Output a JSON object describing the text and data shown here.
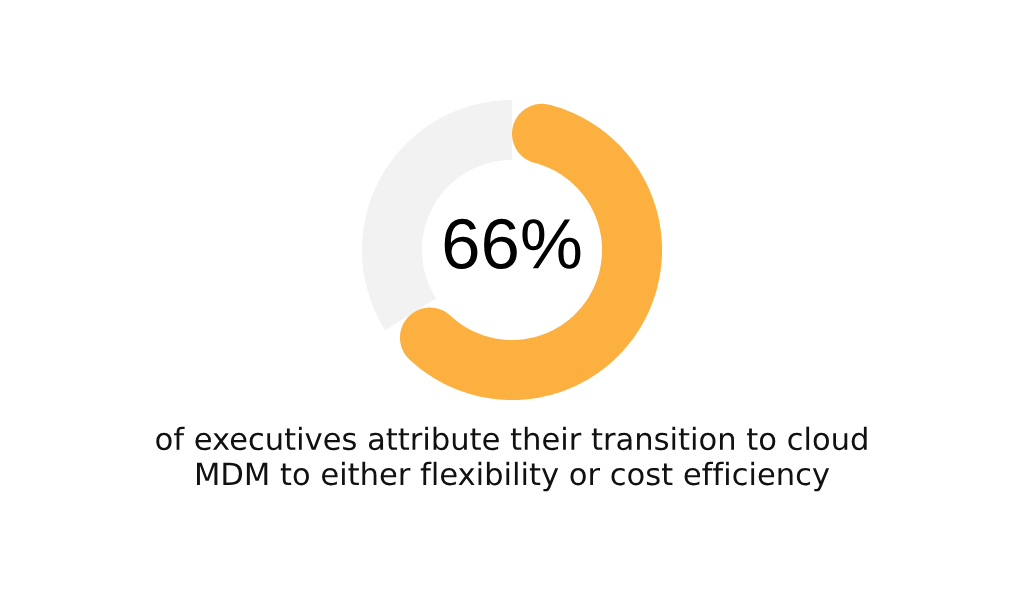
{
  "chart_data": {
    "type": "donut",
    "categories": [
      null,
      null
    ],
    "values": [
      66,
      34
    ],
    "colors": [
      "#fbb040",
      "#f2f2f2"
    ],
    "value_labels": [
      "66%",
      null
    ],
    "annotations": [
      "of executives attribute their transition to cloud\nMDM to either flexibility or cost efficiency"
    ]
  }
}
